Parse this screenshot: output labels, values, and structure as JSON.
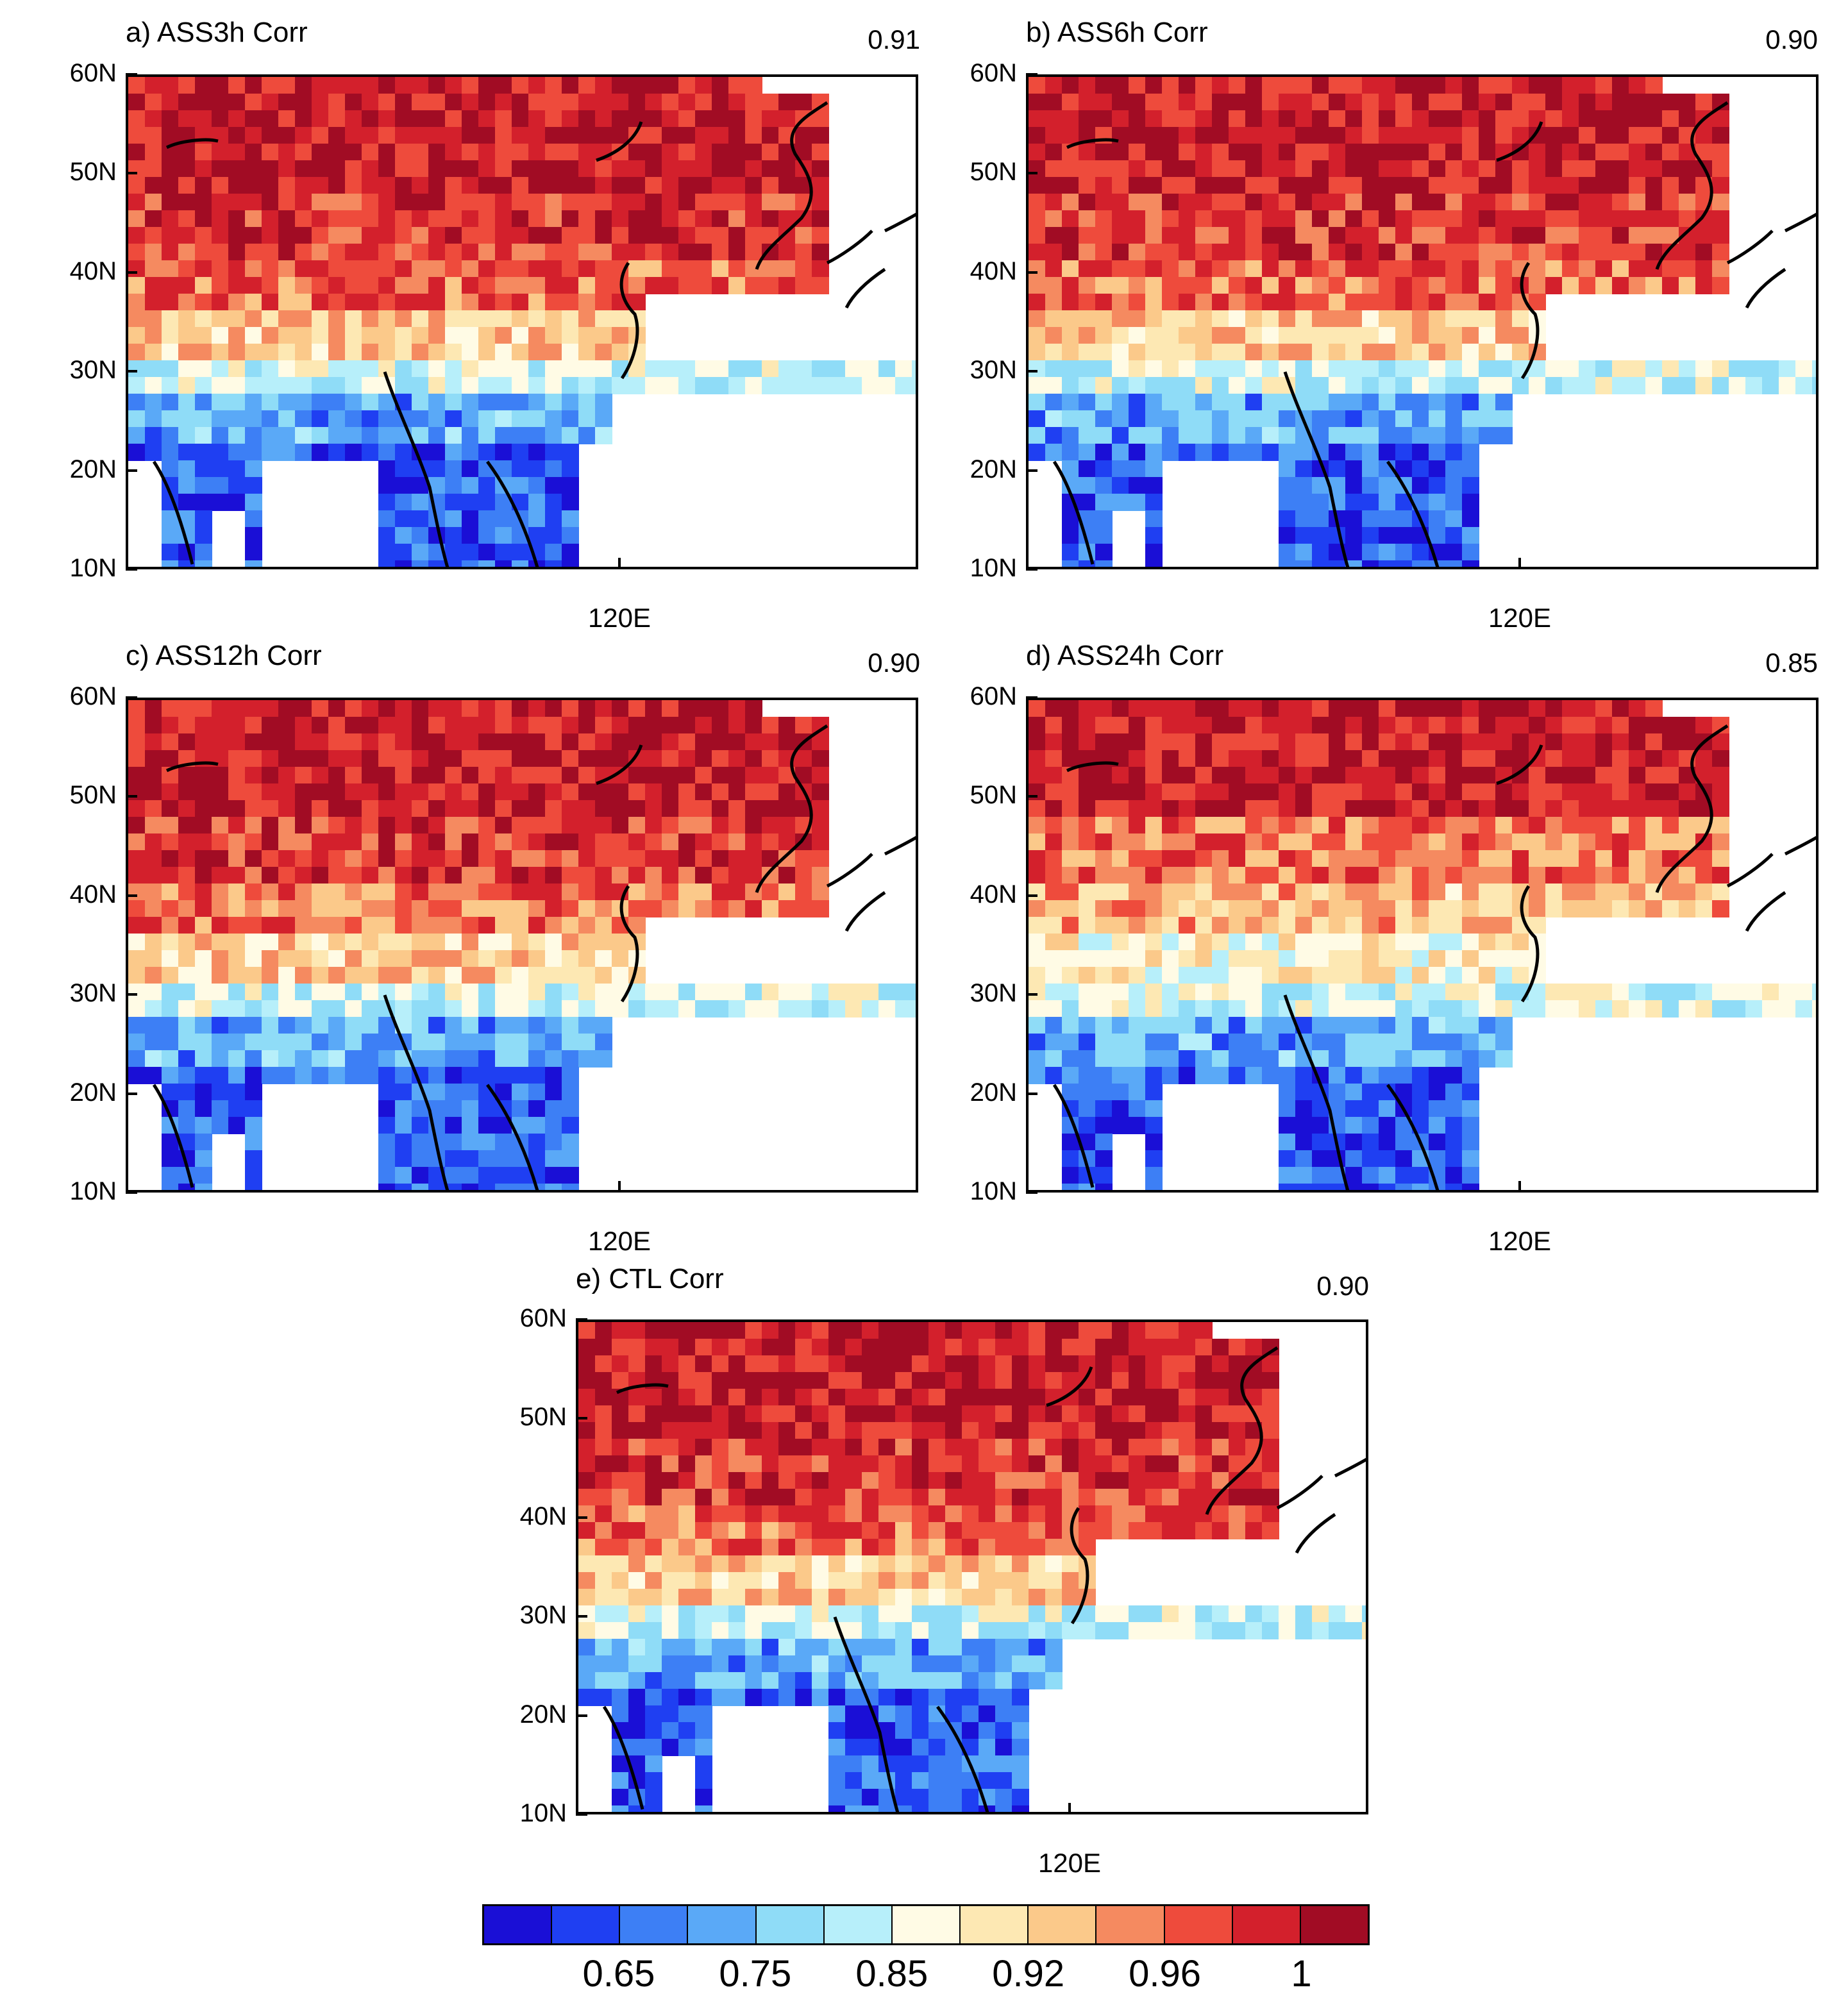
{
  "figure": {
    "panels": [
      {
        "id": "a",
        "title": "a) ASS3h Corr",
        "corr": "0.91"
      },
      {
        "id": "b",
        "title": "b) ASS6h Corr",
        "corr": "0.90"
      },
      {
        "id": "c",
        "title": "c) ASS12h Corr",
        "corr": "0.90"
      },
      {
        "id": "d",
        "title": "d) ASS24h Corr",
        "corr": "0.85"
      },
      {
        "id": "e",
        "title": "e) CTL Corr",
        "corr": "0.90"
      }
    ],
    "lat_labels": [
      "60N",
      "50N",
      "40N",
      "30N",
      "20N",
      "10N"
    ],
    "lon_label": "120E"
  },
  "colorbar": {
    "colors": [
      "#1a0fd6",
      "#1f3ff2",
      "#3d7ff5",
      "#5aa9f7",
      "#8fdcf7",
      "#b7effa",
      "#fffbe5",
      "#fde8b3",
      "#fbc98a",
      "#f58a60",
      "#ee4b3c",
      "#d3202c",
      "#a10c24"
    ],
    "labels": [
      "0.65",
      "0.75",
      "0.85",
      "0.92",
      "0.96",
      "1"
    ]
  }
}
